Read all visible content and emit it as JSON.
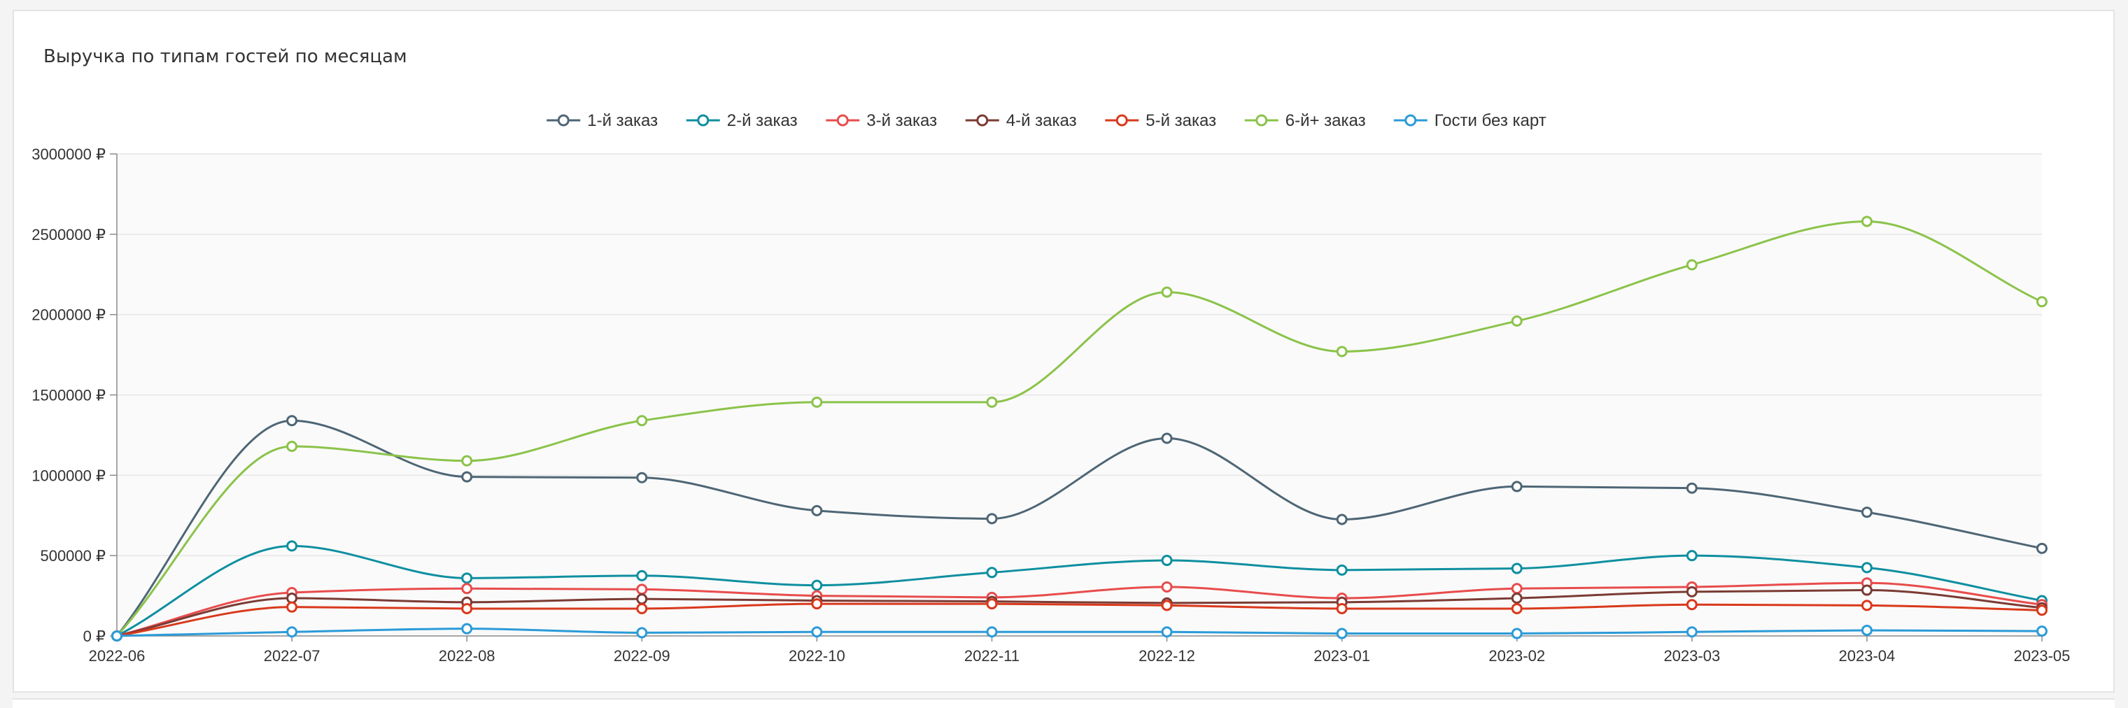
{
  "card": {
    "title": "Выручка по типам гостей по месяцам"
  },
  "chart_data": {
    "type": "line",
    "title": "Выручка по типам гостей по месяцам",
    "xlabel": "",
    "ylabel": "",
    "x": [
      "2022-06",
      "2022-07",
      "2022-08",
      "2022-09",
      "2022-10",
      "2022-11",
      "2022-12",
      "2023-01",
      "2023-02",
      "2023-03",
      "2023-04",
      "2023-05"
    ],
    "ylim": [
      0,
      3000000
    ],
    "yticks": [
      0,
      500000,
      1000000,
      1500000,
      2000000,
      2500000,
      3000000
    ],
    "ytick_labels": [
      "0 ₽",
      "500000 ₽",
      "1000000 ₽",
      "1500000 ₽",
      "2000000 ₽",
      "2500000 ₽",
      "3000000 ₽"
    ],
    "legend_position": "top-center",
    "grid": true,
    "smooth": true,
    "series": [
      {
        "name": "1-й заказ",
        "color": "#4e6675",
        "values": [
          0,
          1340000,
          990000,
          985000,
          780000,
          730000,
          1230000,
          725000,
          930000,
          920000,
          770000,
          545000
        ]
      },
      {
        "name": "2-й заказ",
        "color": "#0e8fa0",
        "values": [
          0,
          560000,
          360000,
          375000,
          315000,
          395000,
          470000,
          410000,
          420000,
          500000,
          425000,
          220000
        ]
      },
      {
        "name": "3-й заказ",
        "color": "#e84c4c",
        "values": [
          0,
          270000,
          295000,
          290000,
          250000,
          240000,
          305000,
          235000,
          295000,
          305000,
          330000,
          195000
        ]
      },
      {
        "name": "4-й заказ",
        "color": "#7b3b34",
        "values": [
          0,
          235000,
          210000,
          230000,
          220000,
          215000,
          205000,
          210000,
          235000,
          275000,
          285000,
          175000
        ]
      },
      {
        "name": "5-й заказ",
        "color": "#d9391c",
        "values": [
          0,
          180000,
          170000,
          170000,
          200000,
          200000,
          190000,
          170000,
          170000,
          195000,
          190000,
          160000
        ]
      },
      {
        "name": "6-й+ заказ",
        "color": "#8bc34a",
        "values": [
          0,
          1180000,
          1090000,
          1340000,
          1455000,
          1455000,
          2140000,
          1770000,
          1960000,
          2310000,
          2580000,
          2080000
        ]
      },
      {
        "name": "Гости без карт",
        "color": "#2b9bd8",
        "values": [
          0,
          25000,
          45000,
          20000,
          25000,
          25000,
          25000,
          15000,
          15000,
          25000,
          35000,
          30000
        ]
      }
    ]
  }
}
